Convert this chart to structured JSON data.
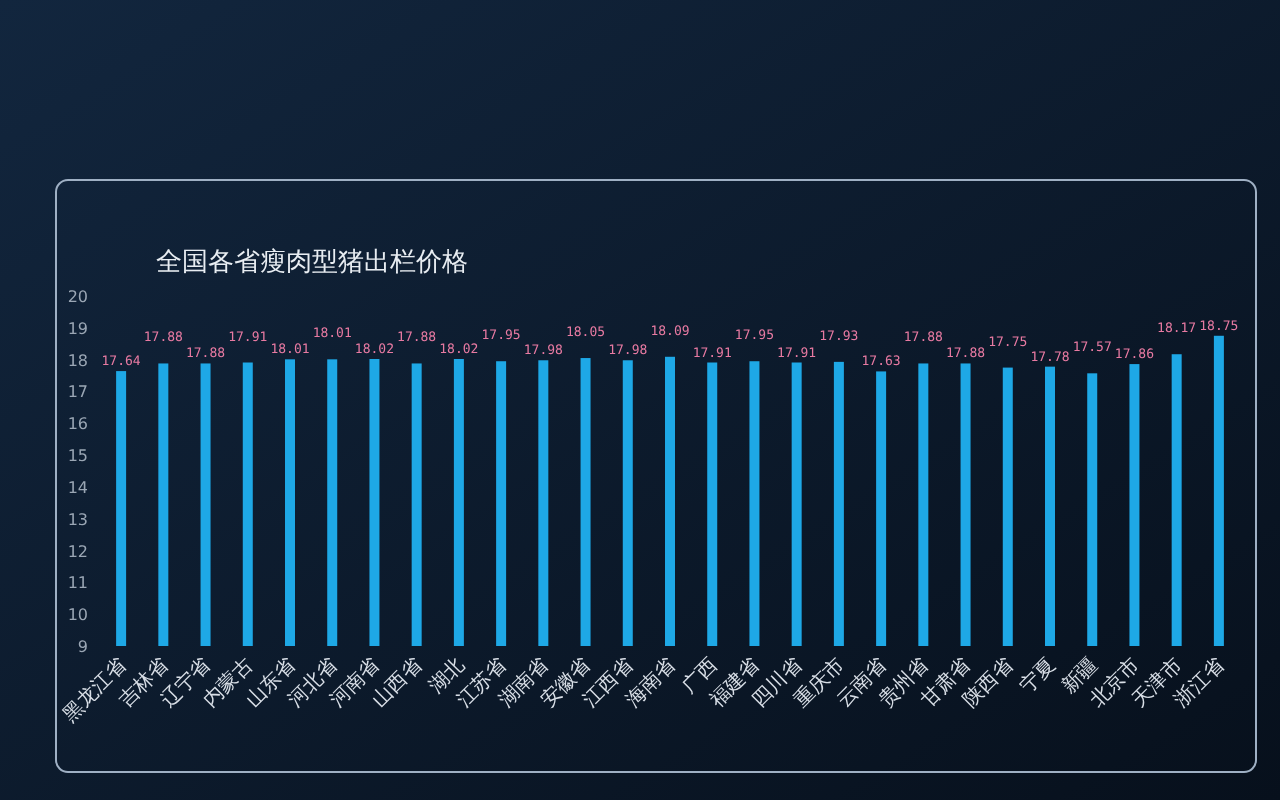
{
  "chart_data": {
    "type": "bar",
    "title": "全国各省瘦肉型猪出栏价格",
    "categories": [
      "黑龙江省",
      "吉林省",
      "辽宁省",
      "内蒙古",
      "山东省",
      "河北省",
      "河南省",
      "山西省",
      "湖北",
      "江苏省",
      "湖南省",
      "安徽省",
      "江西省",
      "海南省",
      "广西",
      "福建省",
      "四川省",
      "重庆市",
      "云南省",
      "贵州省",
      "甘肃省",
      "陕西省",
      "宁夏",
      "新疆",
      "北京市",
      "天津市",
      "浙江省"
    ],
    "values": [
      17.64,
      17.88,
      17.88,
      17.91,
      18.01,
      18.01,
      18.02,
      17.88,
      18.02,
      17.95,
      17.98,
      18.05,
      17.98,
      18.09,
      17.91,
      17.95,
      17.91,
      17.93,
      17.63,
      17.88,
      17.88,
      17.75,
      17.78,
      17.57,
      17.86,
      18.17,
      18.75
    ],
    "color": "#1ea8e6",
    "ylim": [
      9,
      20
    ],
    "yticks": [
      9,
      10,
      11,
      12,
      13,
      14,
      15,
      16,
      17,
      18,
      19,
      20
    ],
    "data_labels": true
  }
}
